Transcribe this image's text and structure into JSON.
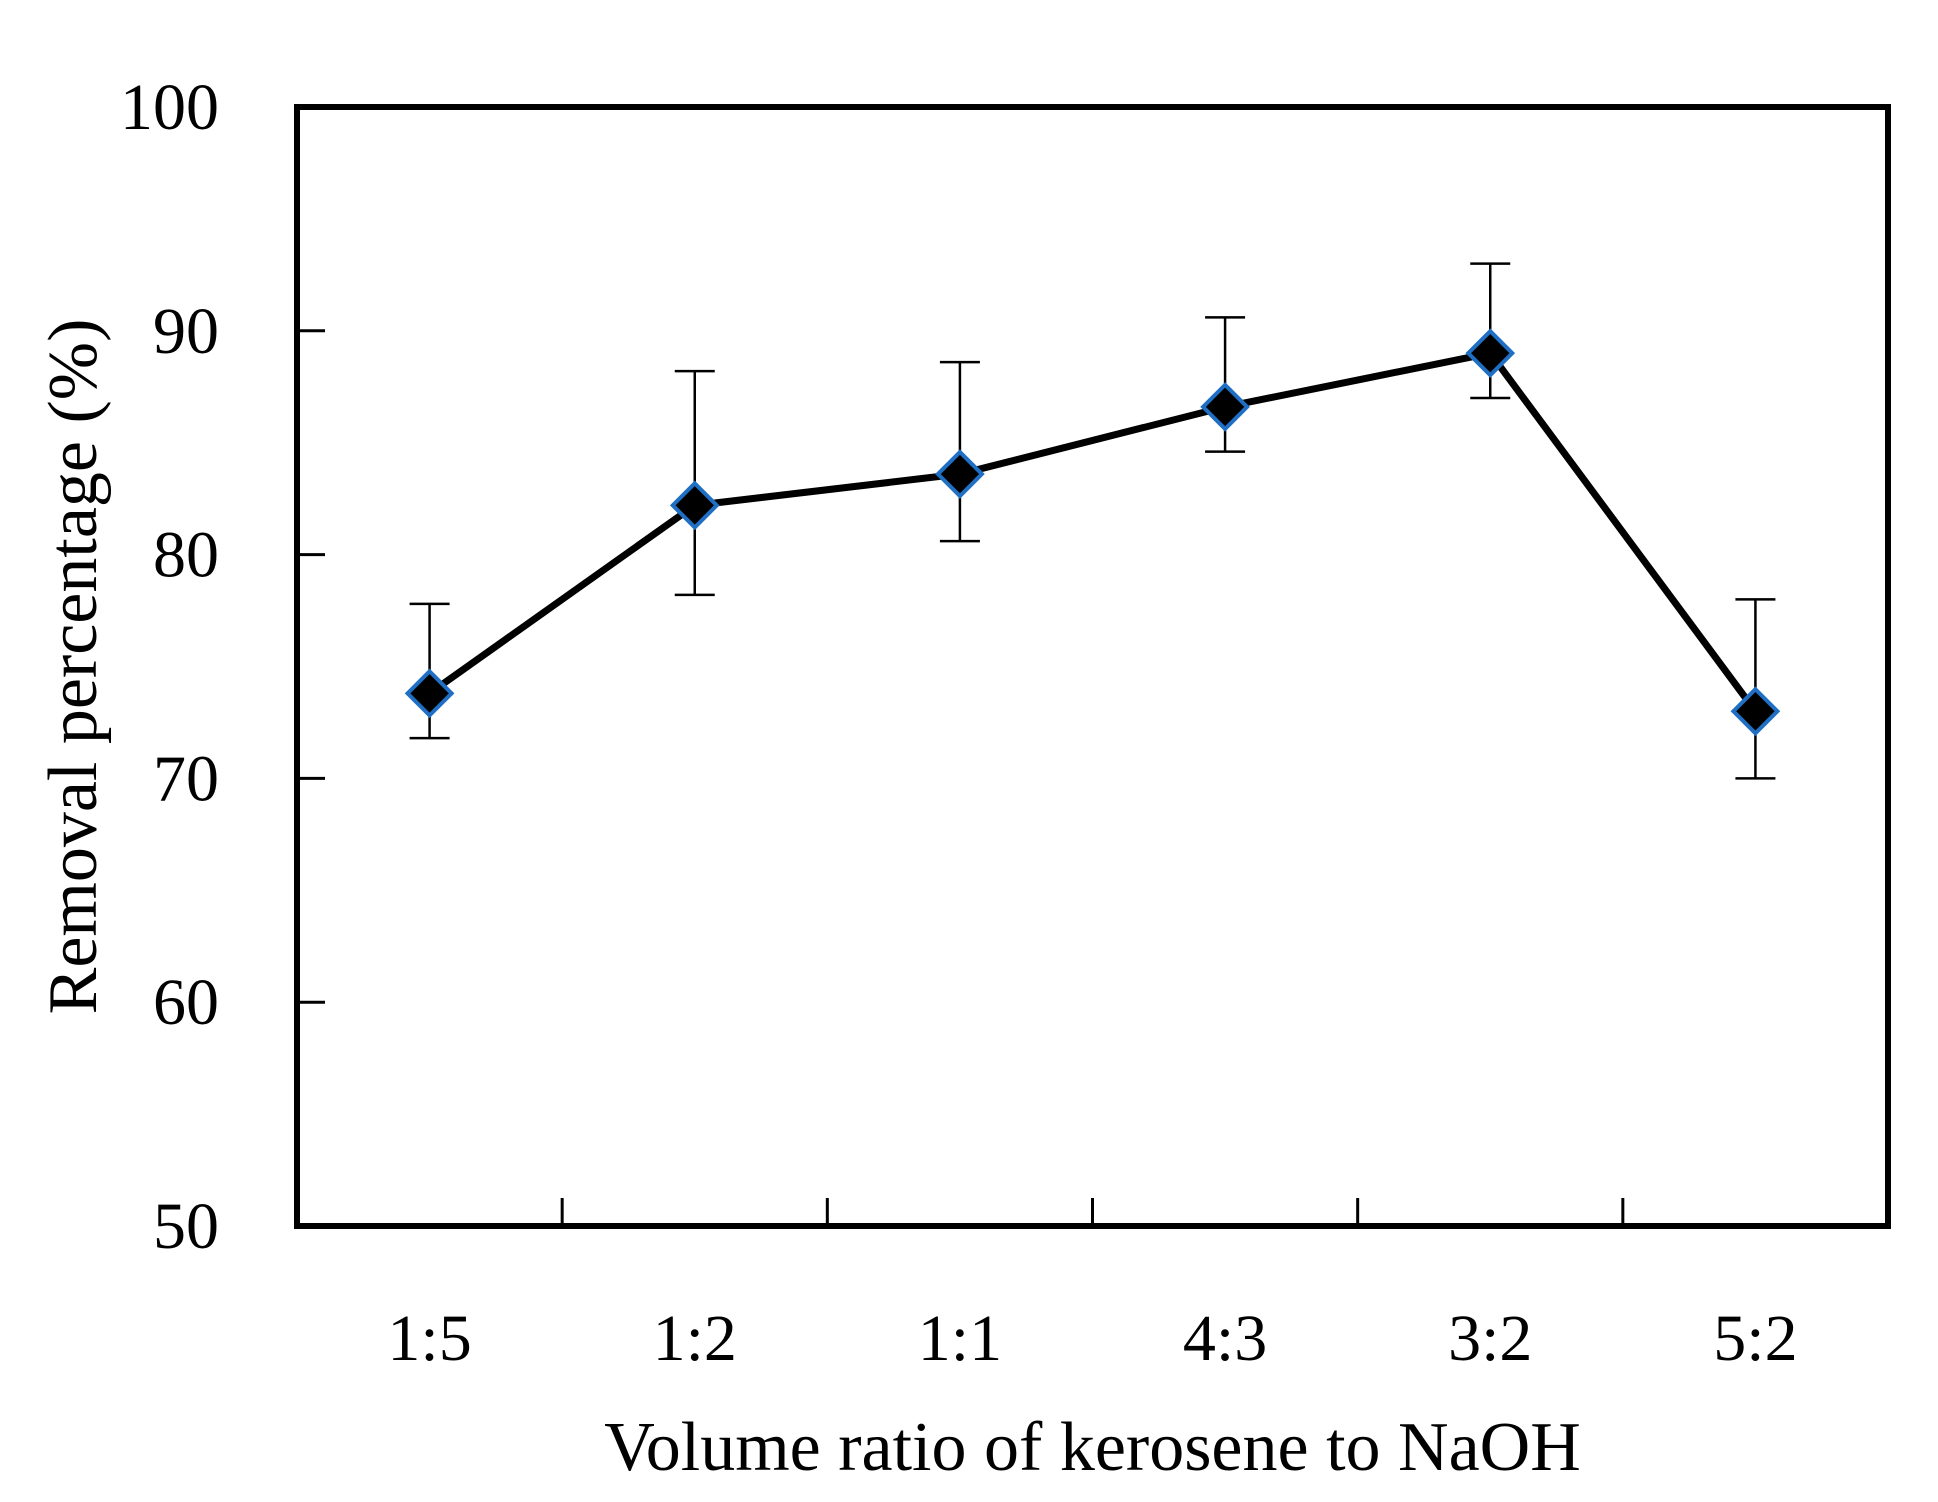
{
  "chart_data": {
    "type": "line",
    "title": "",
    "xlabel": "Volume ratio of kerosene to NaOH",
    "ylabel": "Removal percentage (%)",
    "categories": [
      "1:5",
      "1:2",
      "1:1",
      "4:3",
      "3:2",
      "5:2"
    ],
    "series": [
      {
        "values": [
          73.8,
          82.2,
          83.6,
          86.6,
          89.0,
          73.0
        ],
        "error_low": [
          71.8,
          78.2,
          80.6,
          84.6,
          87.0,
          70.0
        ],
        "error_high": [
          77.8,
          88.2,
          88.6,
          90.6,
          93.0,
          78.0
        ]
      }
    ],
    "yticks": [
      "50",
      "60",
      "70",
      "80",
      "90",
      "100"
    ],
    "ylim": [
      50,
      100
    ],
    "grid": false,
    "legend": "none",
    "colors": {
      "line": "#000000",
      "marker_fill": "#000000",
      "marker_edge": "#1f6fc5",
      "error_bar": "#000000",
      "frame": "#000000"
    }
  }
}
